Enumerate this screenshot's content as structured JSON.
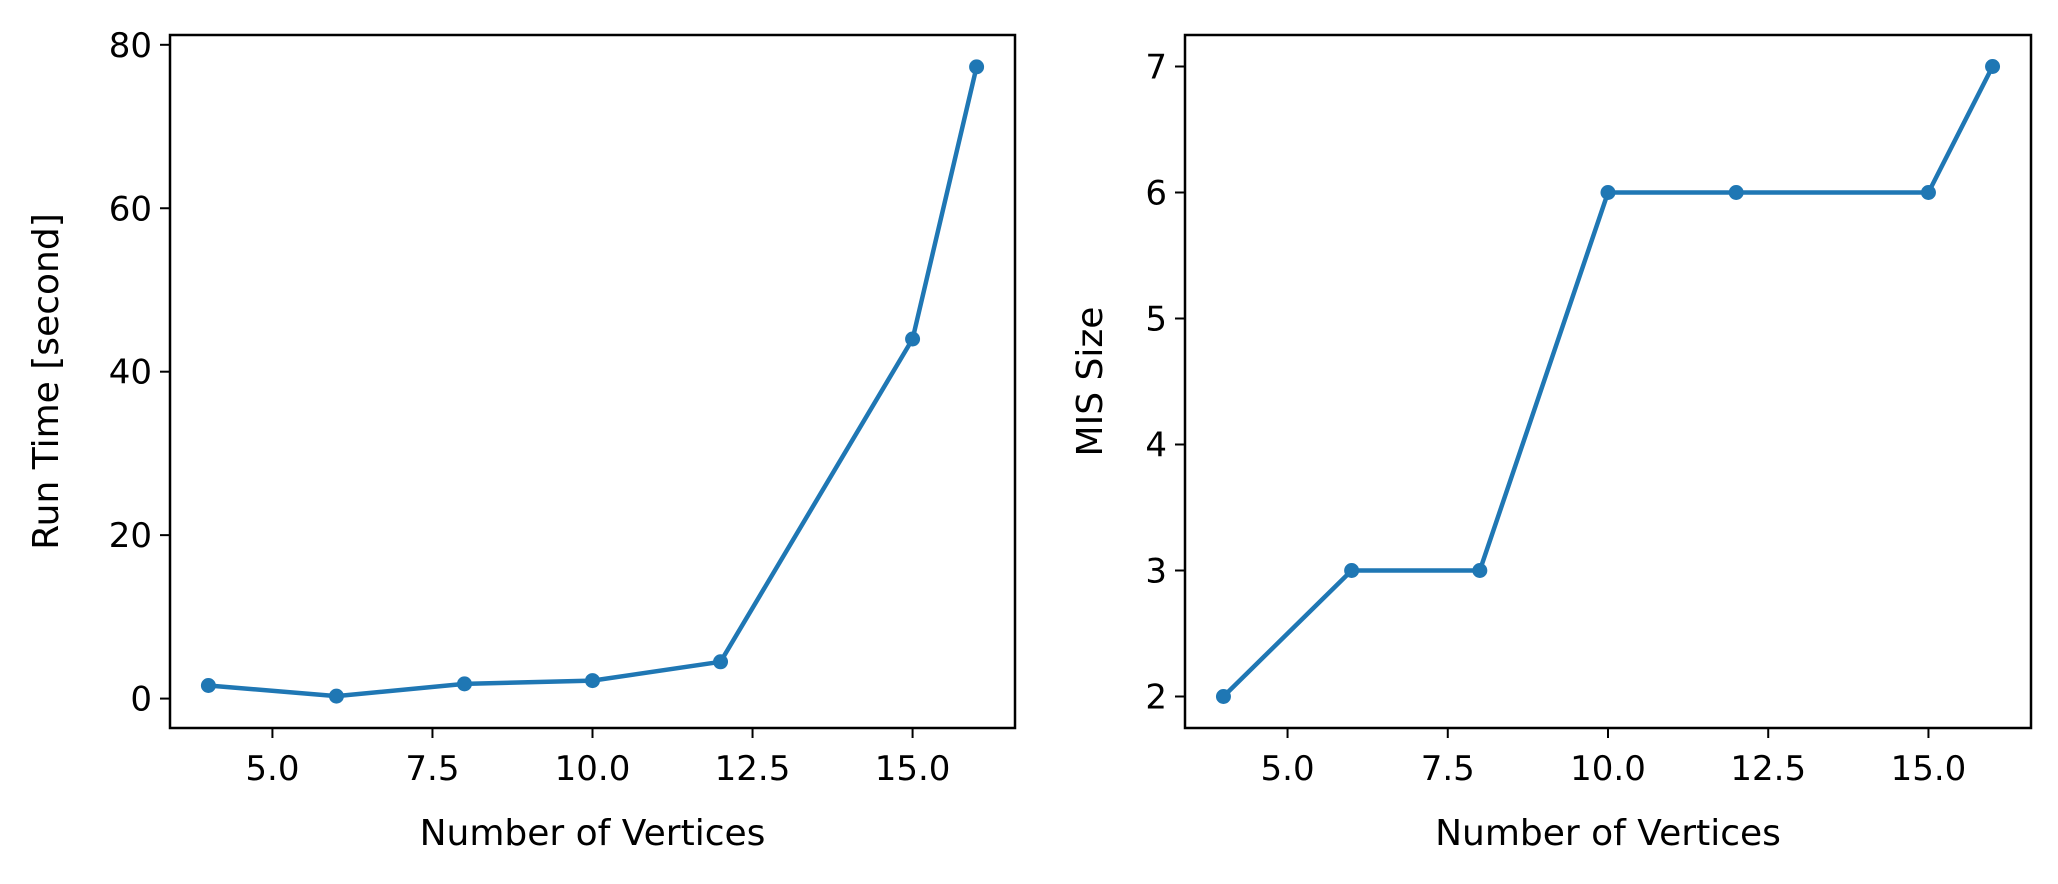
{
  "chart_data": [
    {
      "type": "line",
      "xlabel": "Number of Vertices",
      "ylabel": "Run Time [second]",
      "x": [
        4,
        6,
        8,
        10,
        12,
        15,
        16
      ],
      "series": [
        {
          "values": [
            1.6,
            0.3,
            1.8,
            2.2,
            4.5,
            44.0,
            77.3
          ]
        }
      ],
      "xlim": [
        3.4,
        16.6
      ],
      "ylim": [
        -3.6,
        81.2
      ],
      "xticks": [
        5,
        7.5,
        10,
        12.5,
        15
      ],
      "xtick_labels": [
        "5.0",
        "7.5",
        "10.0",
        "12.5",
        "15.0"
      ],
      "yticks": [
        0,
        20,
        40,
        60,
        80
      ],
      "ytick_labels": [
        "0",
        "20",
        "40",
        "60",
        "80"
      ],
      "grid": false,
      "markers": true,
      "color": "#1f77b4"
    },
    {
      "type": "line",
      "xlabel": "Number of Vertices",
      "ylabel": "MIS Size",
      "x": [
        4,
        6,
        8,
        10,
        12,
        15,
        16
      ],
      "series": [
        {
          "values": [
            2,
            3,
            3,
            6,
            6,
            6,
            7
          ]
        }
      ],
      "xlim": [
        3.4,
        16.6
      ],
      "ylim": [
        1.75,
        7.25
      ],
      "xticks": [
        5,
        7.5,
        10,
        12.5,
        15
      ],
      "xtick_labels": [
        "5.0",
        "7.5",
        "10.0",
        "12.5",
        "15.0"
      ],
      "yticks": [
        2,
        3,
        4,
        5,
        6,
        7
      ],
      "ytick_labels": [
        "2",
        "3",
        "4",
        "5",
        "6",
        "7"
      ],
      "grid": false,
      "markers": true,
      "color": "#1f77b4"
    }
  ]
}
